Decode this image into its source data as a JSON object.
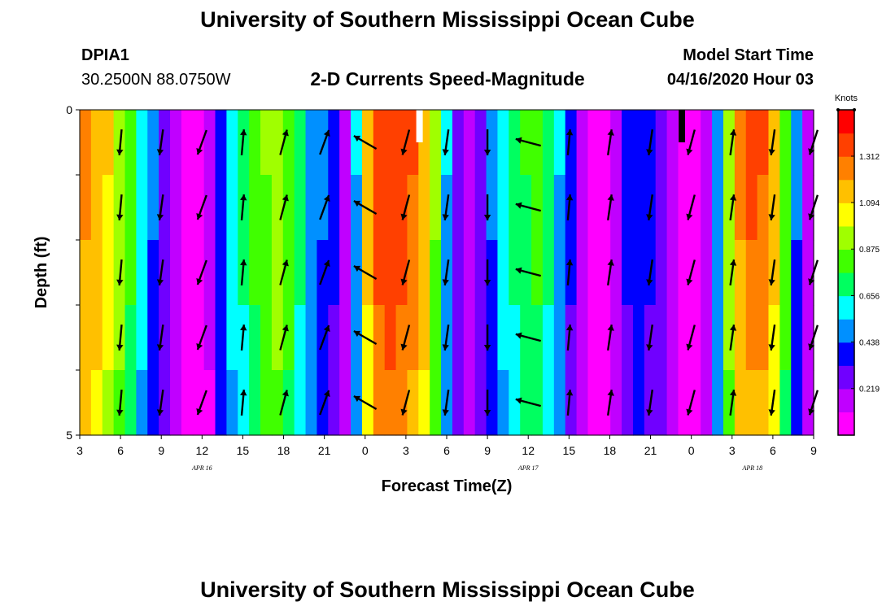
{
  "page": {
    "title_top": "University of Southern Mississippi Ocean Cube",
    "title_bottom": "University of Southern Mississippi Ocean Cube",
    "station_id": "DPIA1",
    "station_coords": "30.2500N 88.0750W",
    "model_start_label": "Model Start Time",
    "model_start_value": "04/16/2020 Hour 03"
  },
  "chart_data": {
    "type": "heatmap",
    "title": "2-D Currents Speed-Magnitude",
    "xlabel": "Forecast Time(Z)",
    "ylabel": "Depth (ft)",
    "x_range_hours": [
      0,
      54
    ],
    "x_tick_labels": [
      "3",
      "6",
      "9",
      "12",
      "15",
      "18",
      "21",
      "0",
      "3",
      "6",
      "9",
      "12",
      "15",
      "18",
      "21",
      "0",
      "3",
      "6",
      "9"
    ],
    "date_labels": [
      {
        "text": "APR 16",
        "hour": 9
      },
      {
        "text": "APR 17",
        "hour": 33
      },
      {
        "text": "APR 18",
        "hour": 49.5
      }
    ],
    "y_range": [
      0,
      5
    ],
    "y_tick_labels": [
      "0",
      "5"
    ],
    "depth_rows": 5,
    "colorbar": {
      "unit": "Knots",
      "min": 0,
      "max": 1.53,
      "ticks": [
        "0.219",
        "0.438",
        "0.656",
        "0.875",
        "1.094",
        "1.312"
      ],
      "colors": [
        "#ff00ff",
        "#c000ff",
        "#7000ff",
        "#0000ff",
        "#0090ff",
        "#00ffff",
        "#00ff60",
        "#40ff00",
        "#a0ff00",
        "#ffff00",
        "#ffc000",
        "#ff8000",
        "#ff4000",
        "#ff0000"
      ]
    },
    "surface_speed_knots": [
      1.25,
      1.2,
      1.1,
      0.98,
      0.8,
      0.62,
      0.45,
      0.3,
      0.18,
      0.08,
      0.05,
      0.12,
      0.4,
      0.6,
      0.7,
      0.8,
      0.88,
      0.95,
      0.85,
      0.7,
      0.5,
      0.45,
      0.35,
      0.15,
      0.55,
      1.15,
      1.38,
      1.42,
      1.38,
      1.32,
      1.18,
      0.9,
      0.55,
      0.3,
      0.2,
      0.3,
      0.45,
      0.6,
      0.7,
      0.78,
      0.8,
      0.7,
      0.55,
      0.35,
      0.18,
      0.08,
      0.08,
      0.2,
      0.35,
      0.4,
      0.35,
      0.28,
      0.18,
      0.08,
      0.04,
      0.2,
      0.5,
      0.95,
      1.25,
      1.35,
      1.32,
      1.15,
      0.85,
      0.45,
      0.2
    ],
    "depth_factors": [
      1.0,
      0.98,
      0.96,
      0.93,
      0.88
    ],
    "arrows": {
      "hours": [
        3,
        6,
        9,
        12,
        15,
        18,
        21,
        24,
        27,
        30,
        33,
        36,
        39,
        42,
        45,
        48,
        51,
        54
      ],
      "directions_deg": [
        185,
        188,
        200,
        5,
        15,
        20,
        300,
        195,
        188,
        180,
        285,
        5,
        8,
        188,
        195,
        8,
        188,
        198
      ],
      "rows_depth_ft": [
        0.5,
        1.5,
        2.5,
        3.5,
        4.5
      ]
    },
    "missing_markers": [
      {
        "hour": 25.0,
        "color": "white"
      },
      {
        "hour": 44.3,
        "color": "black"
      }
    ]
  }
}
